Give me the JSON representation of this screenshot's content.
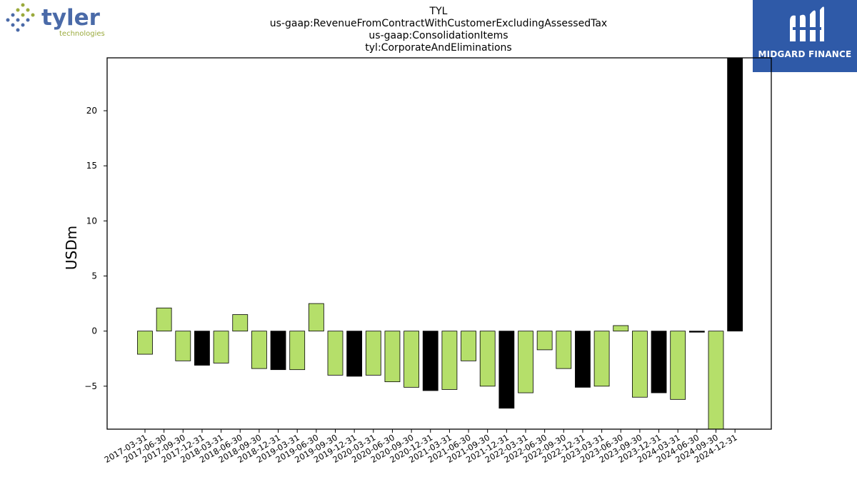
{
  "logo_left": {
    "name": "tyler",
    "tagline": "technologies"
  },
  "logo_right": {
    "name": "MIDGARD FINANCE"
  },
  "chart_data": {
    "type": "bar",
    "title_lines": [
      "TYL",
      "us-gaap:RevenueFromContractWithCustomerExcludingAssessedTax",
      "us-gaap:ConsolidationItems",
      "tyl:CorporateAndEliminations"
    ],
    "xlabel": "",
    "ylabel": "USDm",
    "ylim": [
      -8.9,
      24.8
    ],
    "yticks": [
      -5,
      0,
      5,
      10,
      15,
      20
    ],
    "grid": false,
    "legend": "none",
    "categories": [
      "2017-03-31",
      "2017-06-30",
      "2017-09-30",
      "2017-12-31",
      "2018-03-31",
      "2018-06-30",
      "2018-09-30",
      "2018-12-31",
      "2019-03-31",
      "2019-06-30",
      "2019-09-30",
      "2019-12-31",
      "2020-03-31",
      "2020-06-30",
      "2020-09-30",
      "2020-12-31",
      "2021-03-31",
      "2021-06-30",
      "2021-09-30",
      "2021-12-31",
      "2022-03-31",
      "2022-06-30",
      "2022-09-30",
      "2022-12-31",
      "2023-03-31",
      "2023-06-30",
      "2023-09-30",
      "2023-12-31",
      "2024-03-31",
      "2024-06-30",
      "2024-09-30",
      "2024-12-31"
    ],
    "values": [
      -2.1,
      2.1,
      -2.7,
      -3.1,
      -2.9,
      1.5,
      -3.4,
      -3.5,
      -3.5,
      2.5,
      -4.0,
      -4.1,
      -4.0,
      -4.6,
      -5.1,
      -5.4,
      -5.3,
      -2.7,
      -5.0,
      -7.0,
      -5.6,
      -1.7,
      -3.4,
      -5.1,
      -5.0,
      0.5,
      -6.0,
      -5.6,
      -6.2,
      -0.1,
      -8.9,
      24.8
    ],
    "bar_colors": [
      "#b5df6a",
      "#b5df6a",
      "#b5df6a",
      "#000000",
      "#b5df6a",
      "#b5df6a",
      "#b5df6a",
      "#000000",
      "#b5df6a",
      "#b5df6a",
      "#b5df6a",
      "#000000",
      "#b5df6a",
      "#b5df6a",
      "#b5df6a",
      "#000000",
      "#b5df6a",
      "#b5df6a",
      "#b5df6a",
      "#000000",
      "#b5df6a",
      "#b5df6a",
      "#b5df6a",
      "#000000",
      "#b5df6a",
      "#b5df6a",
      "#b5df6a",
      "#000000",
      "#b5df6a",
      "#000000",
      "#b5df6a",
      "#000000"
    ]
  }
}
